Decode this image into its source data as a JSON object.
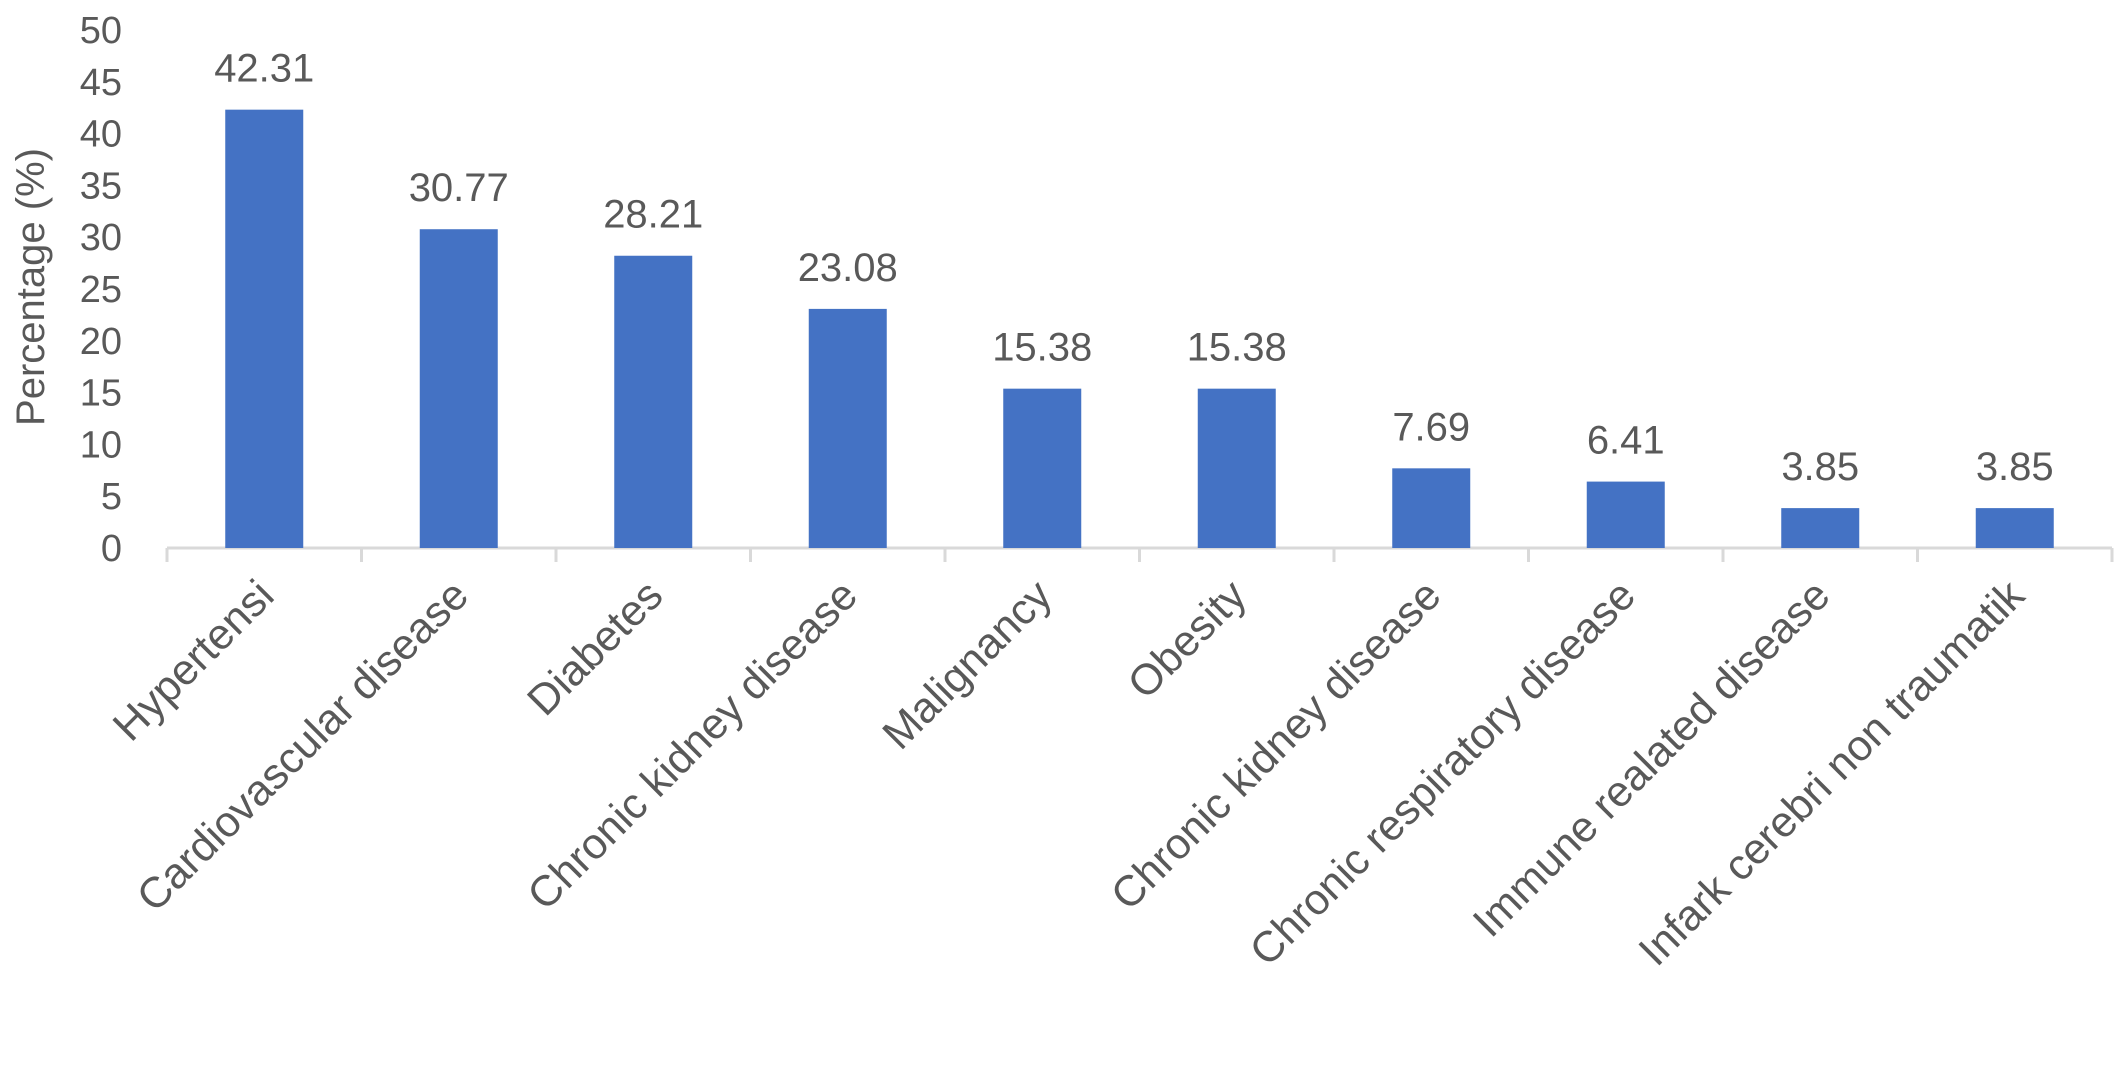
{
  "chart_data": {
    "type": "bar",
    "title": "",
    "xlabel": "",
    "ylabel": "Percentage (%)",
    "ylim": [
      0,
      50
    ],
    "yticks": [
      0,
      5,
      10,
      15,
      20,
      25,
      30,
      35,
      40,
      45,
      50
    ],
    "grid": false,
    "legend": "none",
    "bar_color": "#4472C4",
    "categories": [
      "Hypertensi",
      "Cardiovascular disease",
      "Diabetes",
      "Chronic kidney disease",
      "Malignancy",
      "Obesity",
      "Chronic kidney disease",
      "Chronic respiratory disease",
      "Immune realated disease",
      "Infark cerebri non traumatik"
    ],
    "values": [
      42.31,
      30.77,
      28.21,
      23.08,
      15.38,
      15.38,
      7.69,
      6.41,
      3.85,
      3.85
    ],
    "data_labels": [
      "42.31",
      "30.77",
      "28.21",
      "23.08",
      "15.38",
      "15.38",
      "7.69",
      "6.41",
      "3.85",
      "3.85"
    ]
  }
}
